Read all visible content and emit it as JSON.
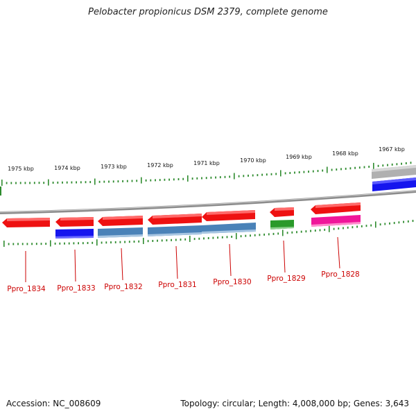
{
  "title": "Pelobacter propionicus DSM 2379, complete genome",
  "footer": {
    "accession": "Accession: NC_008609",
    "summary": "Topology: circular; Length: 4,008,000 bp; Genes: 3,643"
  },
  "colors": {
    "red": "#ee1111",
    "blue": "#1515ee",
    "steelblue": "#4a82b8",
    "green": "#2a9a2a",
    "magenta": "#f0169a",
    "gray": "#b0b0b0",
    "tick": "#2e8b2e",
    "label": "#cc0000"
  },
  "kbp_ticks": [
    "1975 kbp",
    "1974 kbp",
    "1973 kbp",
    "1972 kbp",
    "1971 kbp",
    "1970 kbp",
    "1969 kbp",
    "1968 kbp",
    "1967 kbp"
  ],
  "gene_labels": [
    "Ppro_1834",
    "Ppro_1833",
    "Ppro_1832",
    "Ppro_1831",
    "Ppro_1830",
    "Ppro_1829",
    "Ppro_1828"
  ]
}
